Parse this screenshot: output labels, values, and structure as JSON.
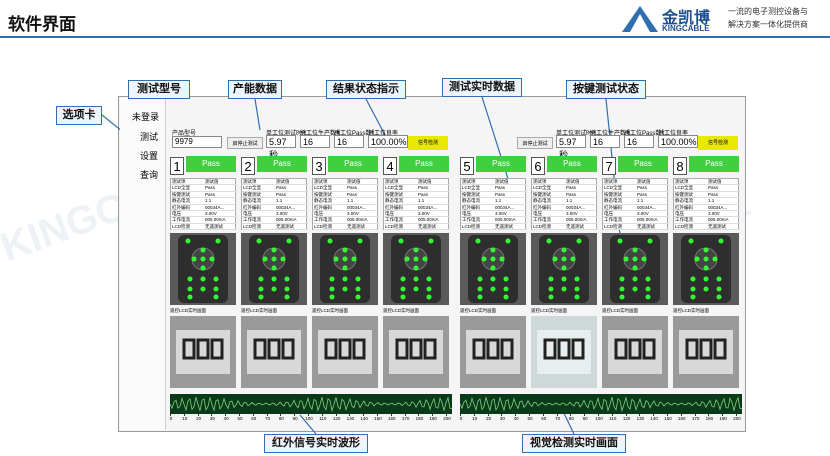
{
  "header": {
    "title": "软件界面",
    "logo_cn": "金凯博",
    "logo_en": "KINGCABLE",
    "slogan": [
      "一流的电子测控设备与",
      "解决方案一体化提供商"
    ]
  },
  "callouts": [
    "测试型号",
    "产能数据",
    "结果状态指示",
    "测试实时数据",
    "按键测试状态",
    "选项卡",
    "红外信号实时波形",
    "视觉检测实时画面"
  ],
  "app": {
    "user": "未登录",
    "tabs": [
      "测试",
      "设置",
      "查询"
    ],
    "model_label": "产品型号",
    "model": "9979",
    "start_button": "启停止测试",
    "signal_button": "信号检测",
    "field_labels": [
      "单工位测试时间",
      "总工位生产数量",
      "总工位Pass数量",
      "总工位良率"
    ],
    "field_values": [
      "5.97秒",
      "16",
      "16",
      "100.00%"
    ],
    "channels": [
      "1",
      "2",
      "3",
      "4",
      "5",
      "6",
      "7",
      "8"
    ],
    "status": "Pass",
    "table_header": [
      "测试项",
      "测试值"
    ],
    "table_rows": [
      [
        "LCD全显",
        "Pass"
      ],
      [
        "按键测试",
        "Pass"
      ],
      [
        "静态电流",
        "1.1"
      ],
      [
        "红外编码",
        "00034A..."
      ],
      [
        "电压",
        "3.00V"
      ],
      [
        "工作电流",
        "005.00mA"
      ],
      [
        "LCD检测",
        "无遥测试"
      ]
    ],
    "lcd_caption": "遥控LCD实时画面",
    "wave_ticks": [
      0,
      10,
      20,
      30,
      40,
      50,
      60,
      70,
      80,
      90,
      100,
      110,
      120,
      130,
      140,
      150,
      160,
      170,
      180,
      190,
      200
    ]
  }
}
